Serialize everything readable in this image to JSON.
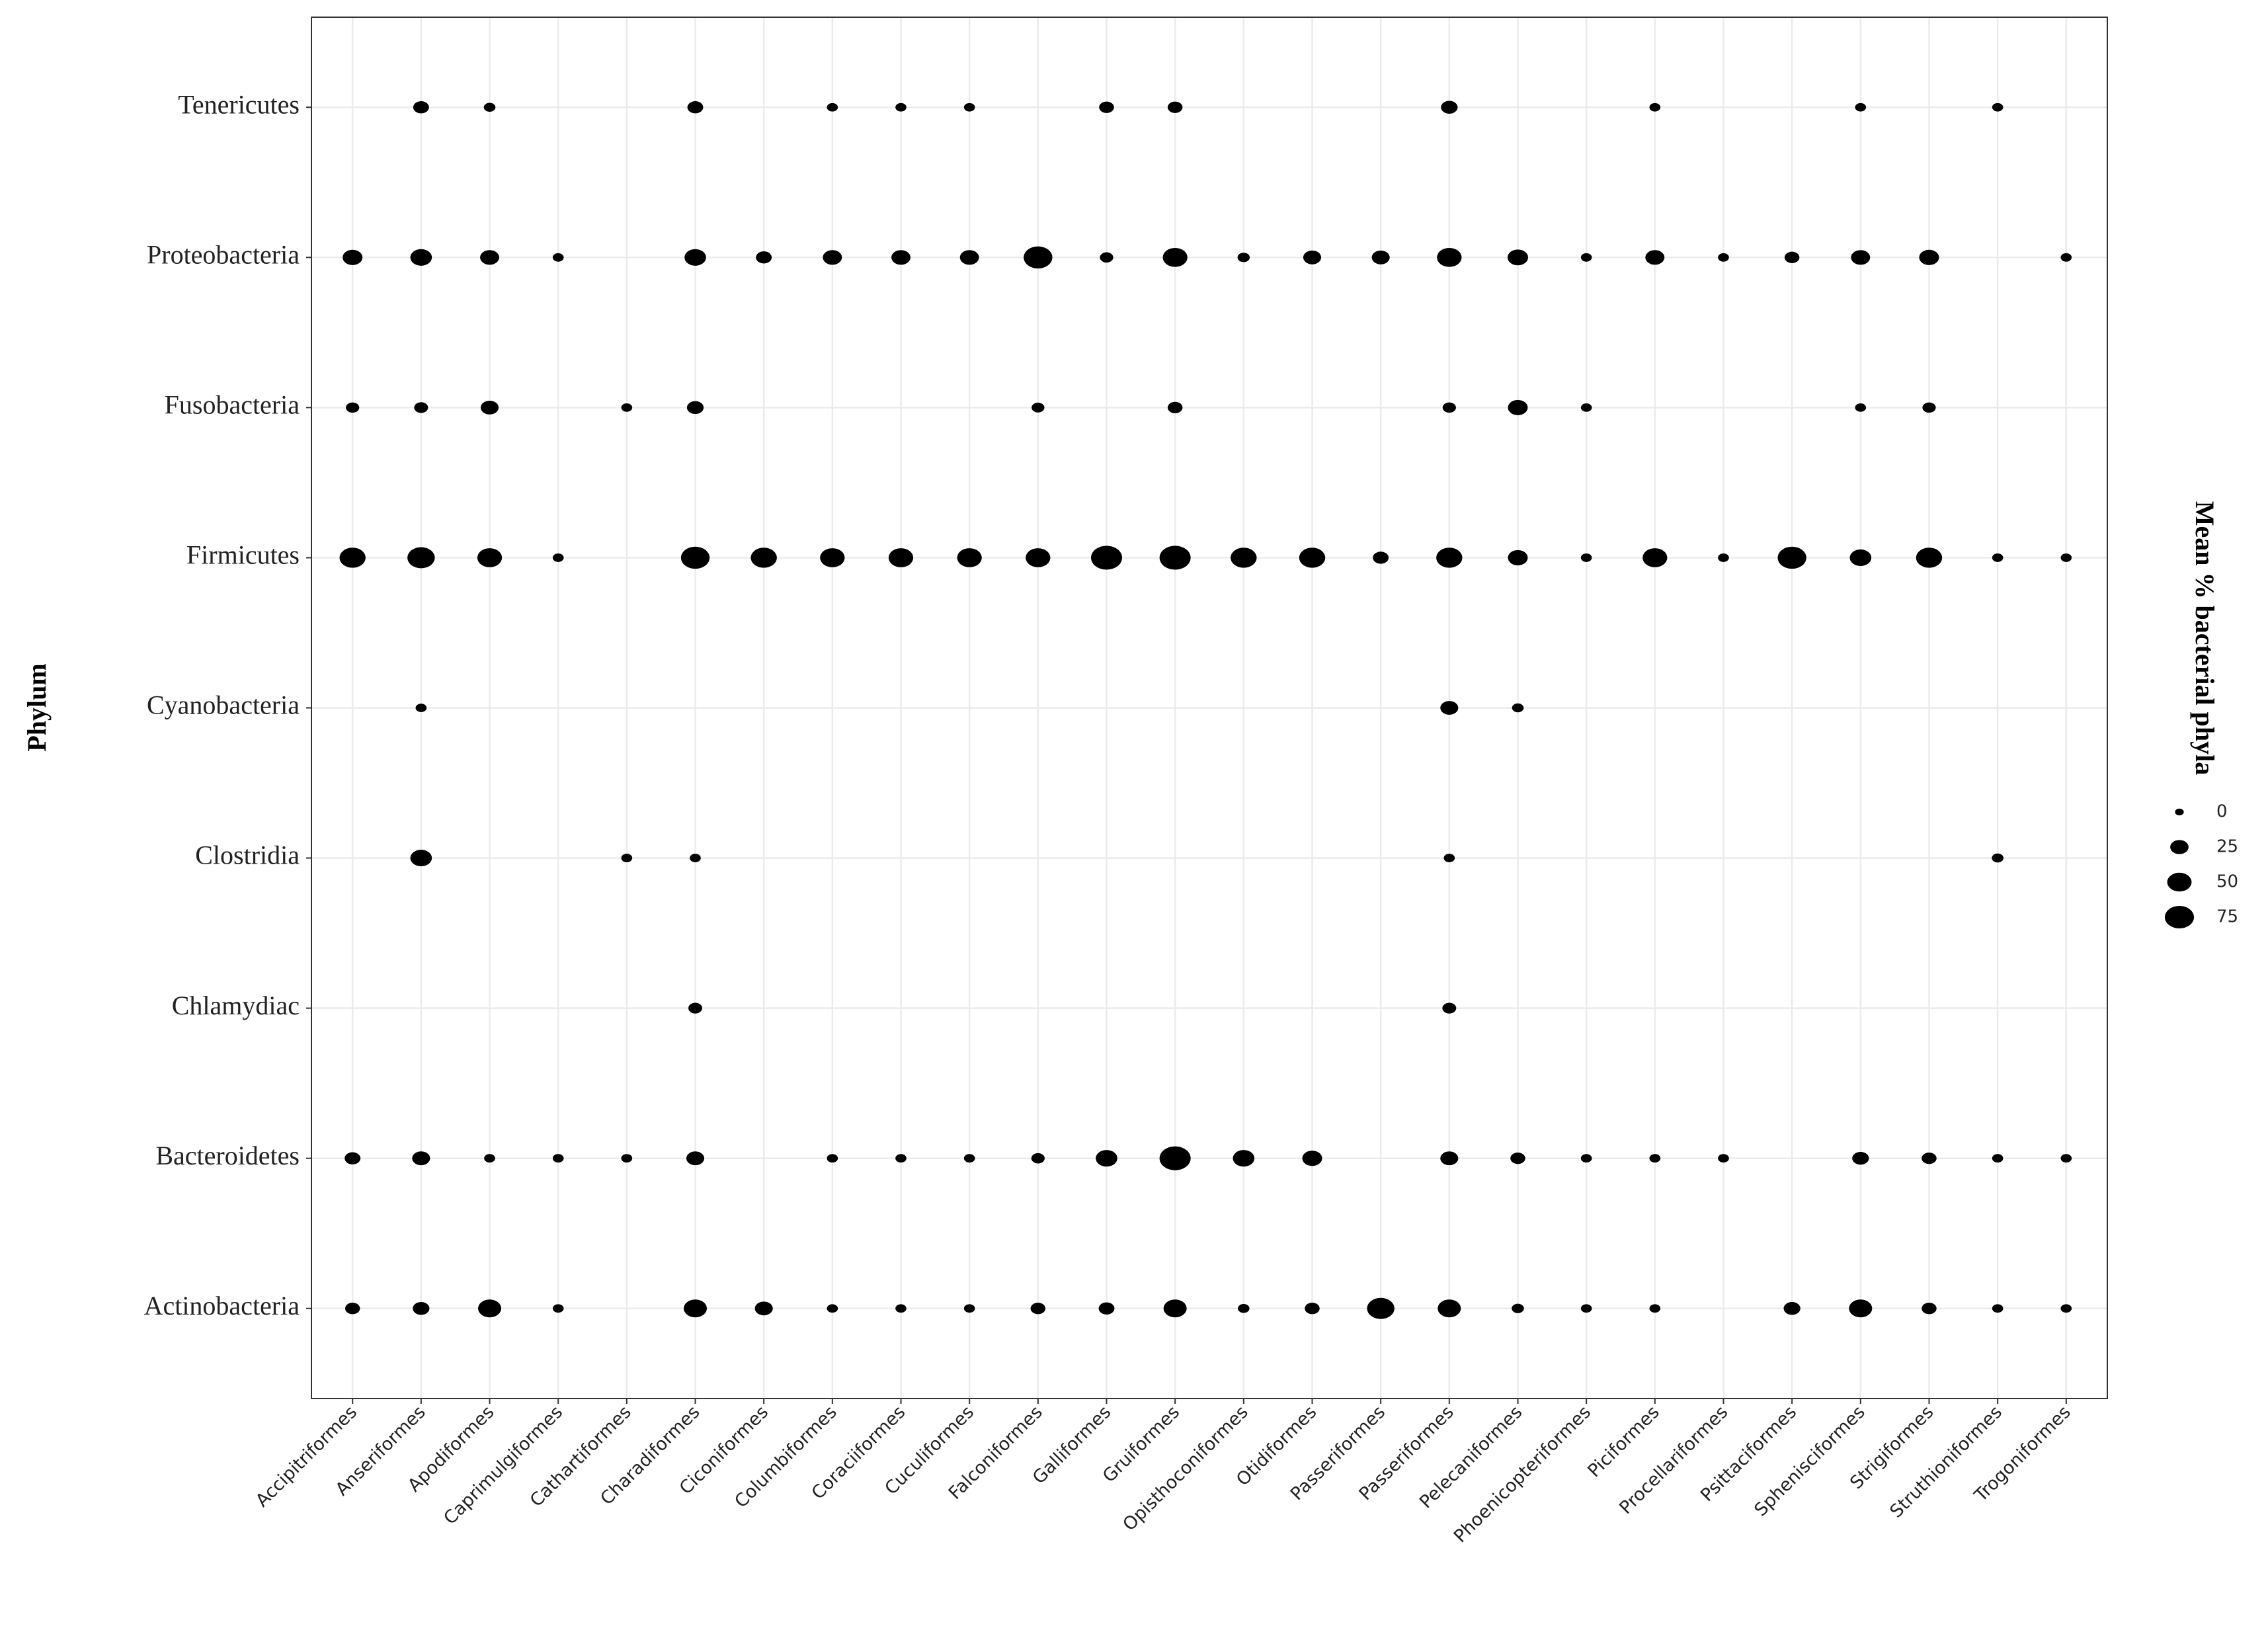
{
  "chart_data": {
    "type": "bubble",
    "y_label": "Phylum",
    "size_title": "Mean % bacterial phyla",
    "size_ticks": [
      0,
      25,
      50,
      75
    ],
    "color": "#000000",
    "grid": true,
    "categories": [
      "Accipitriformes",
      "Anseriformes",
      "Apodiformes",
      "Caprimulgiformes",
      "Cathartiformes",
      "Charadiformes",
      "Ciconiformes",
      "Columbiformes",
      "Coraciiformes",
      "Cuculiformes",
      "Falconiformes",
      "Galliformes",
      "Gruiformes",
      "Opisthoconiformes",
      "Otidiformes",
      "Passeriformes",
      "Passeriformes",
      "Pelecaniformes",
      "Phoenicopteriformes",
      "Piciformes",
      "Procellariformes",
      "Psittaciformes",
      "Sphenisciformes",
      "Strigiformes",
      "Struthioniformes",
      "Trogoniformes"
    ],
    "rows": [
      {
        "name": "Tenericutes",
        "values": [
          null,
          10,
          2,
          null,
          null,
          10,
          null,
          1,
          1,
          1,
          null,
          8,
          8,
          null,
          null,
          null,
          12,
          null,
          null,
          1,
          null,
          null,
          1,
          null,
          1,
          null
        ]
      },
      {
        "name": "Proteobacteria",
        "values": [
          20,
          25,
          18,
          1,
          null,
          25,
          10,
          18,
          18,
          18,
          50,
          5,
          35,
          3,
          15,
          15,
          35,
          22,
          1,
          18,
          1,
          8,
          18,
          20,
          null,
          1
        ]
      },
      {
        "name": "Fusobacteria",
        "values": [
          5,
          6,
          15,
          null,
          1,
          12,
          null,
          null,
          null,
          null,
          4,
          null,
          8,
          null,
          null,
          null,
          5,
          20,
          1,
          null,
          null,
          null,
          1,
          5,
          null,
          null
        ]
      },
      {
        "name": "Firmicutes",
        "values": [
          40,
          45,
          35,
          1,
          null,
          50,
          40,
          35,
          35,
          35,
          35,
          60,
          60,
          40,
          40,
          10,
          40,
          20,
          1,
          35,
          1,
          50,
          25,
          40,
          1,
          1
        ]
      },
      {
        "name": "Cyanobacteria",
        "values": [
          null,
          1,
          null,
          null,
          null,
          null,
          null,
          null,
          null,
          null,
          null,
          null,
          null,
          null,
          null,
          null,
          15,
          2,
          null,
          null,
          null,
          null,
          null,
          null,
          null,
          null
        ]
      },
      {
        "name": "Clostridia",
        "values": [
          null,
          25,
          null,
          null,
          1,
          1,
          null,
          null,
          null,
          null,
          null,
          null,
          null,
          null,
          null,
          null,
          1,
          null,
          null,
          null,
          null,
          null,
          null,
          null,
          2,
          null
        ]
      },
      {
        "name": "Chlamydiac",
        "values": [
          null,
          null,
          null,
          null,
          null,
          6,
          null,
          null,
          null,
          null,
          null,
          null,
          null,
          null,
          null,
          null,
          6,
          null,
          null,
          null,
          null,
          null,
          null,
          null,
          null,
          null
        ]
      },
      {
        "name": "Bacteroidetes",
        "values": [
          10,
          15,
          1,
          1,
          1,
          15,
          null,
          1,
          1,
          1,
          5,
          25,
          60,
          25,
          20,
          null,
          15,
          8,
          1,
          1,
          1,
          null,
          12,
          8,
          1,
          1
        ]
      },
      {
        "name": "Actinobacteria",
        "values": [
          8,
          12,
          30,
          1,
          null,
          30,
          15,
          1,
          1,
          1,
          8,
          10,
          30,
          2,
          8,
          45,
          30,
          3,
          1,
          1,
          null,
          12,
          30,
          8,
          1,
          1
        ]
      }
    ]
  }
}
